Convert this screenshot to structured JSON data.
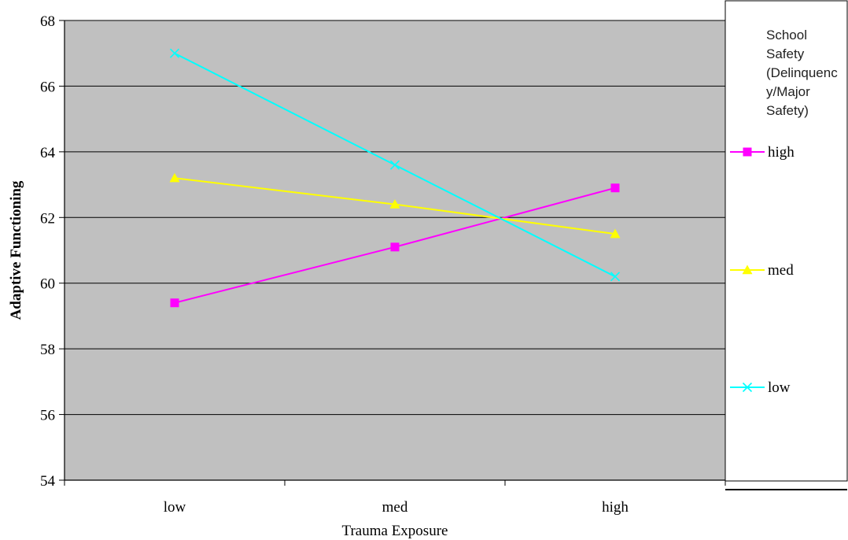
{
  "chart_data": {
    "type": "line",
    "xlabel": "Trauma Exposure",
    "ylabel": "Adaptive Functioning",
    "categories": [
      "low",
      "med",
      "high"
    ],
    "ylim": [
      54,
      68
    ],
    "yticks": [
      54,
      56,
      58,
      60,
      62,
      64,
      66,
      68
    ],
    "grid": true,
    "legend": {
      "placement": "right",
      "title_lines": [
        "School",
        "Safety",
        "(Delinquenc",
        "y/Major",
        "Safety)"
      ]
    },
    "series": [
      {
        "name": "high",
        "color": "#ff00ff",
        "marker": "square",
        "values": [
          59.4,
          61.1,
          62.9
        ]
      },
      {
        "name": "med",
        "color": "#ffff00",
        "marker": "triangle",
        "values": [
          63.2,
          62.4,
          61.5
        ]
      },
      {
        "name": "low",
        "color": "#00ffff",
        "marker": "x",
        "values": [
          67.0,
          63.6,
          60.2
        ]
      }
    ],
    "colors": {
      "plot_background": "#c0c0c0",
      "gridline": "#000000"
    }
  }
}
